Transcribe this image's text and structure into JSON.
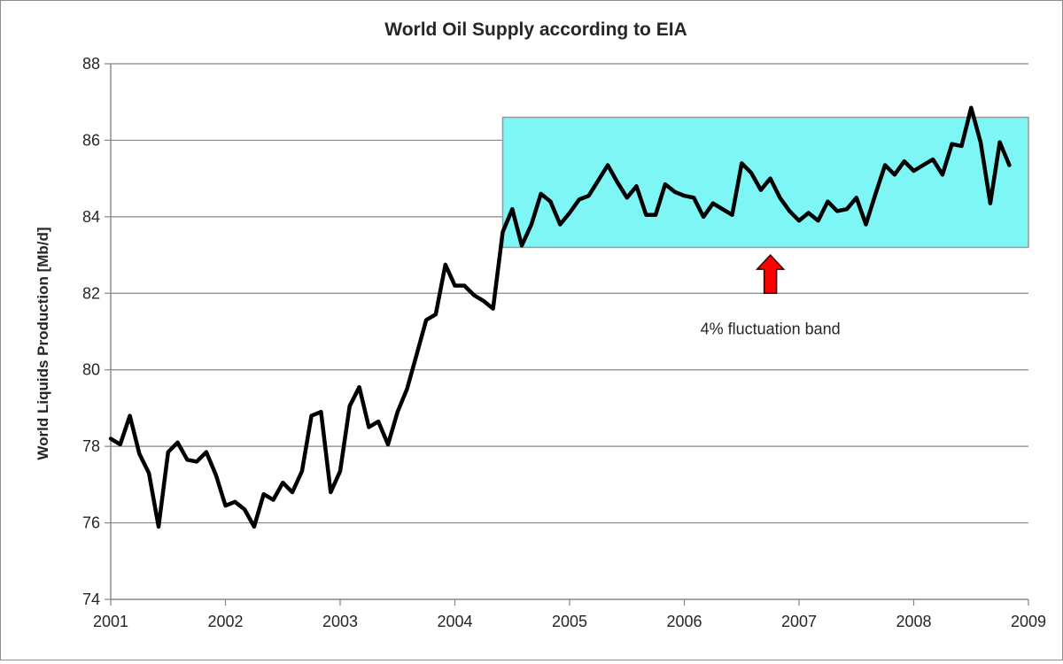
{
  "chart_data": {
    "type": "line",
    "title": "World Oil Supply according to EIA",
    "xlabel": "",
    "ylabel": "World Liquids Production  [Mb/d]",
    "ylim": [
      74,
      88
    ],
    "yticks": [
      74,
      76,
      78,
      80,
      82,
      84,
      86,
      88
    ],
    "xlim": [
      2001,
      2009
    ],
    "xticks": [
      2001,
      2002,
      2003,
      2004,
      2005,
      2006,
      2007,
      2008,
      2009
    ],
    "grid": "horizontal",
    "legend": "none",
    "series": [
      {
        "color": "#000000",
        "x": [
          2001.0,
          2001.083,
          2001.167,
          2001.25,
          2001.333,
          2001.417,
          2001.5,
          2001.583,
          2001.667,
          2001.75,
          2001.833,
          2001.917,
          2002.0,
          2002.083,
          2002.167,
          2002.25,
          2002.333,
          2002.417,
          2002.5,
          2002.583,
          2002.667,
          2002.75,
          2002.833,
          2002.917,
          2003.0,
          2003.083,
          2003.167,
          2003.25,
          2003.333,
          2003.417,
          2003.5,
          2003.583,
          2003.667,
          2003.75,
          2003.833,
          2003.917,
          2004.0,
          2004.083,
          2004.167,
          2004.25,
          2004.333,
          2004.417,
          2004.5,
          2004.583,
          2004.667,
          2004.75,
          2004.833,
          2004.917,
          2005.0,
          2005.083,
          2005.167,
          2005.25,
          2005.333,
          2005.417,
          2005.5,
          2005.583,
          2005.667,
          2005.75,
          2005.833,
          2005.917,
          2006.0,
          2006.083,
          2006.167,
          2006.25,
          2006.333,
          2006.417,
          2006.5,
          2006.583,
          2006.667,
          2006.75,
          2006.833,
          2006.917,
          2007.0,
          2007.083,
          2007.167,
          2007.25,
          2007.333,
          2007.417,
          2007.5,
          2007.583,
          2007.667,
          2007.75,
          2007.833,
          2007.917,
          2008.0,
          2008.083,
          2008.167,
          2008.25,
          2008.333,
          2008.417,
          2008.5,
          2008.583,
          2008.667,
          2008.75,
          2008.833
        ],
        "y": [
          78.2,
          78.05,
          78.8,
          77.8,
          77.3,
          75.9,
          77.85,
          78.1,
          77.65,
          77.6,
          77.85,
          77.25,
          76.45,
          76.55,
          76.35,
          75.9,
          76.75,
          76.6,
          77.05,
          76.8,
          77.35,
          78.8,
          78.9,
          76.8,
          77.35,
          79.05,
          79.55,
          78.5,
          78.65,
          78.05,
          78.9,
          79.5,
          80.4,
          81.3,
          81.45,
          82.75,
          82.2,
          82.2,
          81.95,
          81.8,
          81.6,
          83.6,
          84.2,
          83.25,
          83.8,
          84.6,
          84.4,
          83.8,
          84.1,
          84.45,
          84.55,
          84.95,
          85.35,
          84.9,
          84.5,
          84.8,
          84.05,
          84.05,
          84.85,
          84.65,
          84.55,
          84.5,
          84.0,
          84.35,
          84.2,
          84.05,
          85.4,
          85.15,
          84.7,
          85.0,
          84.5,
          84.15,
          83.9,
          84.1,
          83.9,
          84.4,
          84.15,
          84.2,
          84.5,
          83.8,
          84.6,
          85.35,
          85.1,
          85.45,
          85.2,
          85.35,
          85.5,
          85.1,
          85.9,
          85.85,
          86.85,
          85.95,
          84.35,
          85.95,
          85.35
        ]
      }
    ],
    "band": {
      "x_start": 2004.417,
      "x_end": 2009.0,
      "y_low": 83.2,
      "y_high": 86.6,
      "fill": "#7ff6f6",
      "stroke": "#999999"
    },
    "annotation": {
      "text": "4% fluctuation band",
      "x": 2006.75,
      "y": 81.0,
      "arrow_color": "#ff0000",
      "arrow_tip_y": 83.0,
      "arrow_base_y": 82.0
    },
    "colors": {
      "line": "#000000",
      "grid": "#868686",
      "axis": "#868686"
    }
  }
}
